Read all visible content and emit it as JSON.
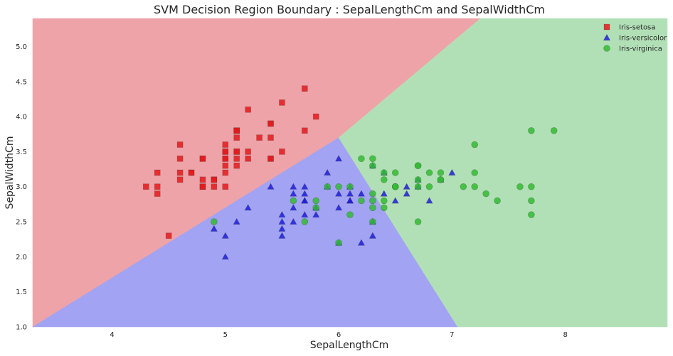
{
  "chart_data": {
    "type": "scatter",
    "title": "SVM Decision Region Boundary : SepalLengthCm and SepalWidthCm",
    "xlabel": "SepalLengthCm",
    "ylabel": "SepalWidthCm",
    "xlim": [
      3.3,
      8.9
    ],
    "ylim": [
      1.0,
      5.4
    ],
    "xticks": [
      "4",
      "5",
      "6",
      "7",
      "8"
    ],
    "yticks": [
      "1.0",
      "1.5",
      "2.0",
      "2.5",
      "3.0",
      "3.5",
      "4.0",
      "4.5",
      "5.0"
    ],
    "grid": false,
    "legend_position": "top-right",
    "regions": [
      {
        "name": "Iris-setosa",
        "color": "#eea3a8",
        "polygon": [
          [
            3.3,
            1.0
          ],
          [
            3.3,
            5.4
          ],
          [
            7.25,
            5.4
          ],
          [
            6.0,
            3.7
          ]
        ]
      },
      {
        "name": "Iris-versicolor",
        "color": "#a2a3f3",
        "polygon": [
          [
            3.3,
            1.0
          ],
          [
            6.0,
            3.7
          ],
          [
            7.05,
            1.0
          ]
        ]
      },
      {
        "name": "Iris-virginica",
        "color": "#b2e0b6",
        "polygon": [
          [
            7.05,
            1.0
          ],
          [
            6.0,
            3.7
          ],
          [
            7.25,
            5.4
          ],
          [
            8.9,
            5.4
          ],
          [
            8.9,
            1.0
          ]
        ]
      }
    ],
    "series": [
      {
        "name": "Iris-setosa",
        "marker": "square",
        "color": "#e31a1c",
        "points": [
          [
            5.1,
            3.5
          ],
          [
            4.9,
            3.0
          ],
          [
            4.7,
            3.2
          ],
          [
            4.6,
            3.1
          ],
          [
            5.0,
            3.6
          ],
          [
            5.4,
            3.9
          ],
          [
            4.6,
            3.4
          ],
          [
            5.0,
            3.4
          ],
          [
            4.4,
            2.9
          ],
          [
            4.9,
            3.1
          ],
          [
            5.4,
            3.7
          ],
          [
            4.8,
            3.4
          ],
          [
            4.8,
            3.0
          ],
          [
            4.3,
            3.0
          ],
          [
            5.8,
            4.0
          ],
          [
            5.7,
            4.4
          ],
          [
            5.4,
            3.9
          ],
          [
            5.1,
            3.5
          ],
          [
            5.7,
            3.8
          ],
          [
            5.1,
            3.8
          ],
          [
            5.4,
            3.4
          ],
          [
            5.1,
            3.7
          ],
          [
            4.6,
            3.6
          ],
          [
            5.1,
            3.3
          ],
          [
            4.8,
            3.4
          ],
          [
            5.0,
            3.0
          ],
          [
            5.0,
            3.4
          ],
          [
            5.2,
            3.5
          ],
          [
            5.2,
            3.4
          ],
          [
            4.7,
            3.2
          ],
          [
            4.8,
            3.1
          ],
          [
            5.4,
            3.4
          ],
          [
            5.2,
            4.1
          ],
          [
            5.5,
            4.2
          ],
          [
            4.9,
            3.1
          ],
          [
            5.0,
            3.2
          ],
          [
            5.5,
            3.5
          ],
          [
            4.4,
            3.0
          ],
          [
            5.1,
            3.4
          ],
          [
            5.0,
            3.5
          ],
          [
            4.5,
            2.3
          ],
          [
            4.4,
            3.2
          ],
          [
            5.0,
            3.5
          ],
          [
            5.1,
            3.8
          ],
          [
            4.8,
            3.0
          ],
          [
            5.1,
            3.8
          ],
          [
            4.6,
            3.2
          ],
          [
            5.3,
            3.7
          ],
          [
            5.0,
            3.3
          ]
        ]
      },
      {
        "name": "Iris-versicolor",
        "marker": "triangle",
        "color": "#1f1fd8",
        "points": [
          [
            7.0,
            3.2
          ],
          [
            6.4,
            3.2
          ],
          [
            6.9,
            3.1
          ],
          [
            5.5,
            2.3
          ],
          [
            6.5,
            2.8
          ],
          [
            5.7,
            2.8
          ],
          [
            6.3,
            3.3
          ],
          [
            4.9,
            2.4
          ],
          [
            6.6,
            2.9
          ],
          [
            5.2,
            2.7
          ],
          [
            5.0,
            2.0
          ],
          [
            5.9,
            3.0
          ],
          [
            6.0,
            2.2
          ],
          [
            6.1,
            2.9
          ],
          [
            5.6,
            2.9
          ],
          [
            6.7,
            3.1
          ],
          [
            5.6,
            3.0
          ],
          [
            5.8,
            2.7
          ],
          [
            6.2,
            2.2
          ],
          [
            5.6,
            2.5
          ],
          [
            5.9,
            3.2
          ],
          [
            6.1,
            2.8
          ],
          [
            6.3,
            2.5
          ],
          [
            6.1,
            2.8
          ],
          [
            6.4,
            2.9
          ],
          [
            6.6,
            3.0
          ],
          [
            6.8,
            2.8
          ],
          [
            6.7,
            3.0
          ],
          [
            6.0,
            2.9
          ],
          [
            5.7,
            2.6
          ],
          [
            5.5,
            2.4
          ],
          [
            5.8,
            2.7
          ],
          [
            6.0,
            2.7
          ],
          [
            5.4,
            3.0
          ],
          [
            6.0,
            3.4
          ],
          [
            6.3,
            2.3
          ],
          [
            5.5,
            2.5
          ],
          [
            5.5,
            2.6
          ],
          [
            6.1,
            3.0
          ],
          [
            5.8,
            2.6
          ],
          [
            5.0,
            2.3
          ],
          [
            5.6,
            2.7
          ],
          [
            5.7,
            3.0
          ],
          [
            5.7,
            2.9
          ],
          [
            6.2,
            2.9
          ],
          [
            5.1,
            2.5
          ],
          [
            5.7,
            2.8
          ]
        ]
      },
      {
        "name": "Iris-virginica",
        "marker": "circle",
        "color": "#33bb33",
        "points": [
          [
            6.3,
            3.3
          ],
          [
            5.8,
            2.7
          ],
          [
            7.1,
            3.0
          ],
          [
            6.3,
            2.9
          ],
          [
            6.5,
            3.0
          ],
          [
            7.6,
            3.0
          ],
          [
            4.9,
            2.5
          ],
          [
            7.3,
            2.9
          ],
          [
            6.7,
            2.5
          ],
          [
            7.2,
            3.6
          ],
          [
            6.5,
            3.2
          ],
          [
            6.4,
            2.7
          ],
          [
            6.8,
            3.0
          ],
          [
            5.7,
            2.5
          ],
          [
            5.8,
            2.8
          ],
          [
            6.4,
            3.2
          ],
          [
            6.5,
            3.0
          ],
          [
            7.7,
            3.8
          ],
          [
            7.7,
            2.6
          ],
          [
            6.0,
            2.2
          ],
          [
            6.9,
            3.2
          ],
          [
            5.6,
            2.8
          ],
          [
            7.7,
            2.8
          ],
          [
            6.3,
            2.7
          ],
          [
            6.7,
            3.3
          ],
          [
            7.2,
            3.2
          ],
          [
            6.2,
            2.8
          ],
          [
            6.1,
            3.0
          ],
          [
            6.4,
            2.8
          ],
          [
            7.2,
            3.0
          ],
          [
            7.4,
            2.8
          ],
          [
            7.9,
            3.8
          ],
          [
            6.3,
            2.8
          ],
          [
            6.1,
            2.6
          ],
          [
            7.7,
            3.0
          ],
          [
            6.3,
            3.4
          ],
          [
            6.4,
            3.1
          ],
          [
            6.0,
            3.0
          ],
          [
            6.9,
            3.1
          ],
          [
            6.7,
            3.1
          ],
          [
            6.9,
            3.1
          ],
          [
            6.8,
            3.2
          ],
          [
            6.7,
            3.3
          ],
          [
            6.7,
            3.0
          ],
          [
            6.3,
            2.5
          ],
          [
            6.5,
            3.0
          ],
          [
            6.2,
            3.4
          ],
          [
            5.9,
            3.0
          ]
        ]
      }
    ]
  }
}
